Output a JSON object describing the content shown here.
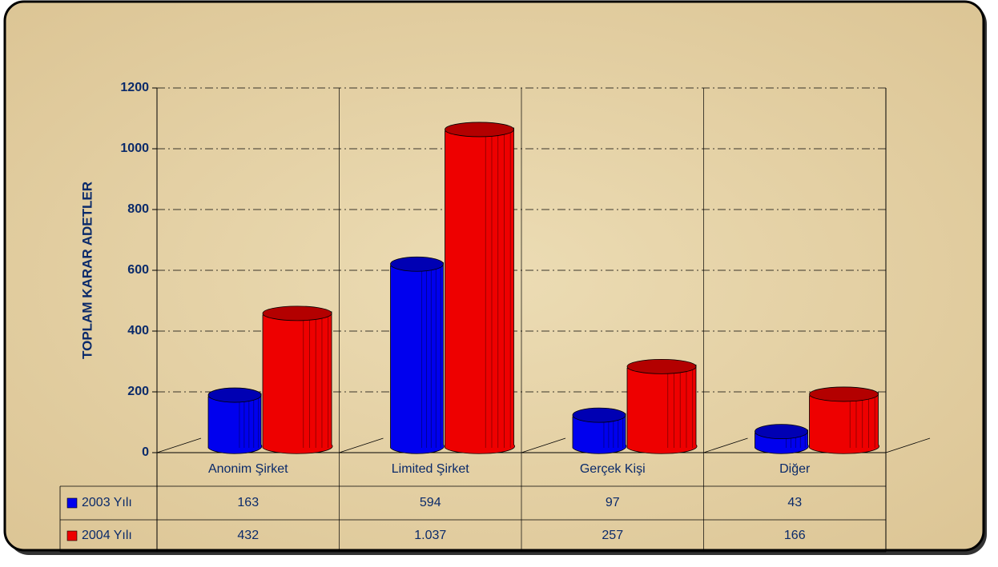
{
  "chart_data": {
    "type": "bar3d",
    "y_label": "TOPLAM KARAR ADETLER",
    "categories": [
      "Anonim Şirket",
      "Limited Şirket",
      "Gerçek Kişi",
      "Diğer"
    ],
    "series": [
      {
        "name": "2003 Yılı",
        "color": "#0000ee",
        "values": [
          163,
          594,
          97,
          43
        ]
      },
      {
        "name": "2004 Yılı",
        "color": "#ee0000",
        "values": [
          432,
          1037,
          257,
          166
        ],
        "value_labels": [
          "432",
          "1.037",
          "257",
          "166"
        ]
      }
    ],
    "ylim": [
      0,
      1200
    ],
    "yticks": [
      0,
      200,
      400,
      600,
      800,
      1000,
      1200
    ],
    "grid": true
  }
}
